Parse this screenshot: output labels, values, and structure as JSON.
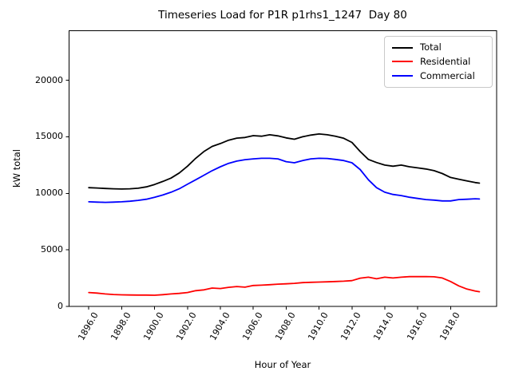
{
  "chart_data": {
    "type": "line",
    "title": "Timeseries Load for P1R p1rhs1_1247  Day 80",
    "xlabel": "Hour of Year",
    "ylabel": "kW total",
    "xlim": [
      1894.8,
      1920.8
    ],
    "ylim": [
      0,
      24380
    ],
    "grid": false,
    "legend_position": "upper right",
    "x_tick_rotation_deg": 60,
    "x_ticks": {
      "values": [
        1896,
        1898,
        1900,
        1902,
        1904,
        1906,
        1908,
        1910,
        1912,
        1914,
        1916,
        1918
      ],
      "labels": [
        "1896.0",
        "1898.0",
        "1900.0",
        "1902.0",
        "1904.0",
        "1906.0",
        "1908.0",
        "1910.0",
        "1912.0",
        "1914.0",
        "1916.0",
        "1918.0"
      ]
    },
    "y_ticks": {
      "values": [
        0,
        5000,
        10000,
        15000,
        20000
      ],
      "labels": [
        "0",
        "5000",
        "10000",
        "15000",
        "20000"
      ]
    },
    "x": [
      1896,
      1896.5,
      1897,
      1897.5,
      1898,
      1898.5,
      1899,
      1899.5,
      1900,
      1900.5,
      1901,
      1901.5,
      1902,
      1902.5,
      1903,
      1903.5,
      1904,
      1904.5,
      1905,
      1905.5,
      1906,
      1906.5,
      1907,
      1907.5,
      1908,
      1908.5,
      1909,
      1909.5,
      1910,
      1910.5,
      1911,
      1911.5,
      1912,
      1912.5,
      1913,
      1913.5,
      1914,
      1914.5,
      1915,
      1915.5,
      1916,
      1916.5,
      1917,
      1917.5,
      1918,
      1918.5,
      1919,
      1919.5,
      1919.75
    ],
    "series": [
      {
        "name": "Total",
        "color": "#000000",
        "values": [
          10500,
          10470,
          10430,
          10400,
          10380,
          10400,
          10450,
          10570,
          10780,
          11050,
          11350,
          11800,
          12400,
          13100,
          13700,
          14150,
          14400,
          14700,
          14880,
          14940,
          15100,
          15050,
          15180,
          15080,
          14900,
          14780,
          15000,
          15150,
          15250,
          15180,
          15050,
          14870,
          14500,
          13700,
          13000,
          12720,
          12500,
          12400,
          12500,
          12350,
          12250,
          12150,
          12000,
          11750,
          11400,
          11250,
          11100,
          10950,
          10900
        ]
      },
      {
        "name": "Residential",
        "color": "#ff0000",
        "values": [
          1230,
          1180,
          1100,
          1050,
          1020,
          1010,
          1000,
          1000,
          990,
          1040,
          1100,
          1150,
          1230,
          1390,
          1460,
          1620,
          1580,
          1690,
          1760,
          1700,
          1850,
          1880,
          1920,
          1970,
          2000,
          2040,
          2100,
          2130,
          2150,
          2170,
          2200,
          2230,
          2280,
          2500,
          2580,
          2440,
          2580,
          2510,
          2580,
          2630,
          2630,
          2640,
          2620,
          2510,
          2200,
          1810,
          1530,
          1360,
          1300
        ]
      },
      {
        "name": "Commercial",
        "color": "#0000ff",
        "values": [
          9250,
          9220,
          9200,
          9220,
          9250,
          9300,
          9380,
          9480,
          9650,
          9850,
          10100,
          10400,
          10800,
          11200,
          11600,
          12000,
          12350,
          12650,
          12850,
          12980,
          13050,
          13100,
          13100,
          13050,
          12800,
          12700,
          12900,
          13050,
          13100,
          13080,
          13000,
          12900,
          12700,
          12100,
          11200,
          10500,
          10100,
          9900,
          9800,
          9650,
          9550,
          9450,
          9400,
          9330,
          9330,
          9450,
          9480,
          9520,
          9500
        ]
      }
    ]
  }
}
